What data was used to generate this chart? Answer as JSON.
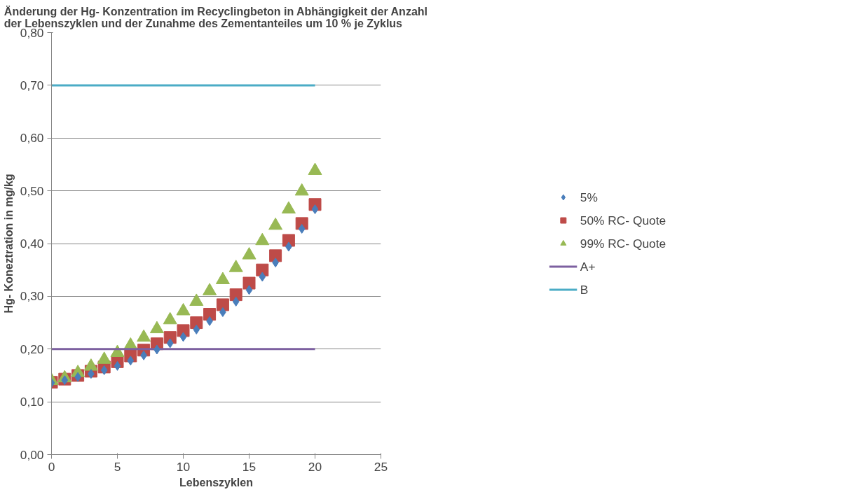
{
  "chart_data": {
    "type": "scatter",
    "title": "Änderung der Hg- Konzentration im Recyclingbeton in Abhängigkeit der Anzahl\nder Lebenszyklen und der Zunahme des Zementanteiles um 10 % je Zyklus",
    "xlabel": "Lebenszyklen",
    "ylabel": "Hg- Koneztration in mg/kg",
    "x": [
      0,
      1,
      2,
      3,
      4,
      5,
      6,
      7,
      8,
      9,
      10,
      11,
      12,
      13,
      14,
      15,
      16,
      17,
      18,
      19,
      20
    ],
    "series": [
      {
        "name": "5%",
        "color": "#4a7ebb",
        "marker": "diamond",
        "values": [
          0.136,
          0.141,
          0.147,
          0.153,
          0.16,
          0.168,
          0.178,
          0.188,
          0.199,
          0.211,
          0.223,
          0.237,
          0.253,
          0.27,
          0.29,
          0.312,
          0.337,
          0.364,
          0.394,
          0.428,
          0.465
        ]
      },
      {
        "name": "50% RC- Quote",
        "color": "#be4b48",
        "marker": "square",
        "values": [
          0.137,
          0.143,
          0.15,
          0.158,
          0.166,
          0.176,
          0.187,
          0.198,
          0.21,
          0.222,
          0.235,
          0.25,
          0.266,
          0.284,
          0.303,
          0.325,
          0.35,
          0.377,
          0.406,
          0.438,
          0.474
        ]
      },
      {
        "name": "99% RC- Quote",
        "color": "#98b954",
        "marker": "triangle",
        "values": [
          0.14,
          0.145,
          0.155,
          0.167,
          0.18,
          0.193,
          0.207,
          0.222,
          0.238,
          0.255,
          0.272,
          0.29,
          0.31,
          0.331,
          0.354,
          0.378,
          0.405,
          0.434,
          0.465,
          0.499,
          0.538
        ]
      },
      {
        "name": "A+",
        "type": "line",
        "color": "#7d60a0",
        "values": [
          0.2,
          0.2,
          0.2,
          0.2,
          0.2,
          0.2,
          0.2,
          0.2,
          0.2,
          0.2,
          0.2,
          0.2,
          0.2,
          0.2,
          0.2,
          0.2,
          0.2,
          0.2,
          0.2,
          0.2,
          0.2
        ]
      },
      {
        "name": "B",
        "type": "line",
        "color": "#4bacc6",
        "values": [
          0.7,
          0.7,
          0.7,
          0.7,
          0.7,
          0.7,
          0.7,
          0.7,
          0.7,
          0.7,
          0.7,
          0.7,
          0.7,
          0.7,
          0.7,
          0.7,
          0.7,
          0.7,
          0.7,
          0.7,
          0.7
        ]
      }
    ],
    "xlim": [
      0,
      25
    ],
    "xticks": [
      0,
      5,
      10,
      15,
      20,
      25
    ],
    "ylim": [
      0,
      0.8
    ],
    "yticks": [
      {
        "value": 0,
        "label": "0,00"
      },
      {
        "value": 0.1,
        "label": "0,10"
      },
      {
        "value": 0.2,
        "label": "0,20"
      },
      {
        "value": 0.3,
        "label": "0,30"
      },
      {
        "value": 0.4,
        "label": "0,40"
      },
      {
        "value": 0.5,
        "label": "0,50"
      },
      {
        "value": 0.6,
        "label": "0,60"
      },
      {
        "value": 0.7,
        "label": "0,70"
      },
      {
        "value": 0.8,
        "label": "0,80"
      }
    ],
    "grid": "y",
    "legend": "right"
  }
}
